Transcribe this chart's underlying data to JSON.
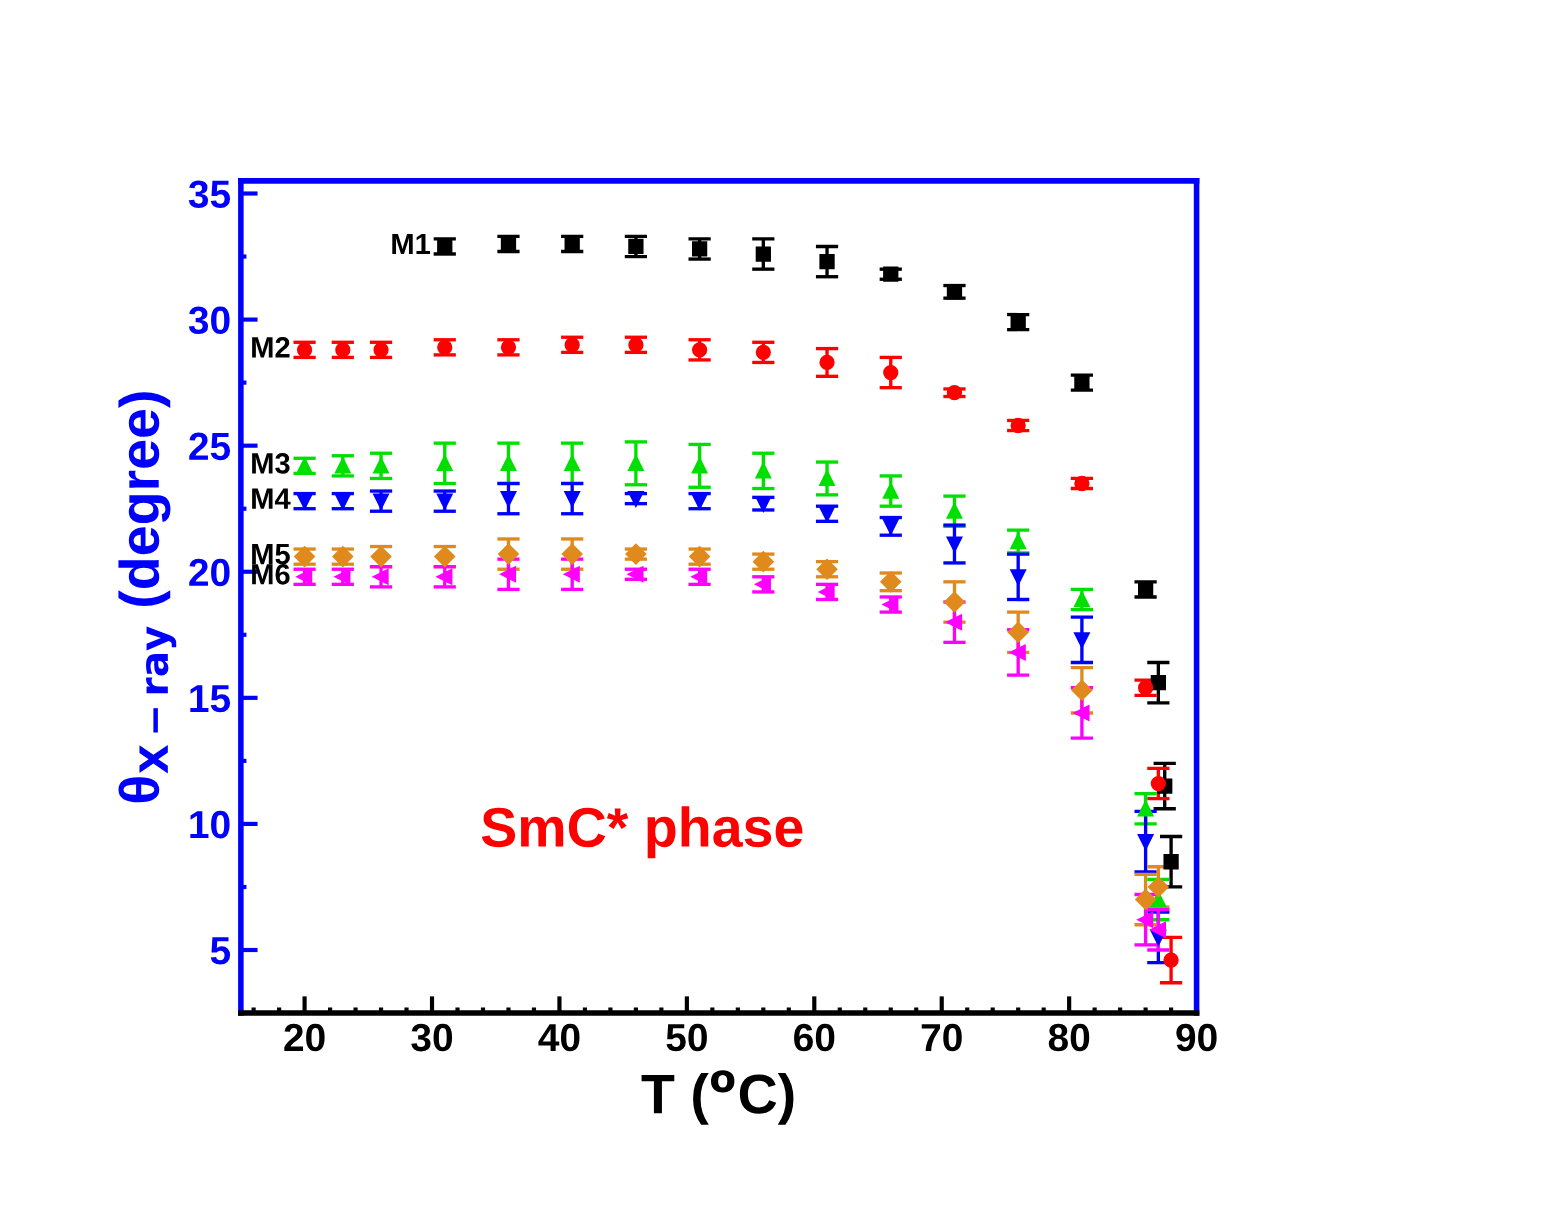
{
  "chart_data": {
    "type": "scatter",
    "xlabel": "T ($^{o}$C)",
    "ylabel": "θ$_{X−ray}$ (degree)",
    "xlim": [
      15,
      90
    ],
    "ylim": [
      2.5,
      35.5
    ],
    "xticks": [
      20,
      30,
      40,
      50,
      60,
      70,
      80,
      90
    ],
    "yticks": [
      5,
      10,
      15,
      20,
      25,
      30,
      35
    ],
    "grid": false,
    "legend": false,
    "annotations": [
      "SmC* phase"
    ],
    "series": [
      {
        "name": "M1",
        "color": "#000000",
        "marker": "square",
        "x": [
          31,
          36,
          41,
          46,
          51,
          56,
          61,
          66,
          71,
          76,
          81,
          86,
          87,
          87.5,
          88
        ],
        "values": [
          32.9,
          33.0,
          33.0,
          32.9,
          32.8,
          32.6,
          32.3,
          31.8,
          31.1,
          29.9,
          27.5,
          19.3,
          15.6,
          11.5,
          8.5
        ],
        "errors": [
          0.3,
          0.3,
          0.3,
          0.4,
          0.4,
          0.6,
          0.6,
          0.2,
          0.25,
          0.3,
          0.3,
          0.3,
          0.8,
          0.9,
          1.0
        ]
      },
      {
        "name": "M2",
        "color": "#ff0000",
        "marker": "circle",
        "x": [
          20,
          23,
          26,
          31,
          36,
          41,
          46,
          51,
          56,
          61,
          66,
          71,
          76,
          81,
          86,
          87,
          88
        ],
        "values": [
          28.8,
          28.8,
          28.8,
          28.9,
          28.9,
          29.0,
          29.0,
          28.8,
          28.7,
          28.3,
          27.9,
          27.1,
          25.8,
          23.5,
          15.4,
          11.6,
          4.6
        ],
        "errors": [
          0.3,
          0.3,
          0.3,
          0.3,
          0.3,
          0.3,
          0.3,
          0.4,
          0.4,
          0.55,
          0.6,
          0.15,
          0.2,
          0.2,
          0.3,
          0.6,
          0.9
        ]
      },
      {
        "name": "M3",
        "color": "#00e000",
        "marker": "triangle",
        "x": [
          20,
          23,
          26,
          31,
          36,
          41,
          46,
          51,
          56,
          61,
          66,
          71,
          76,
          81,
          86,
          87
        ],
        "values": [
          24.2,
          24.2,
          24.2,
          24.3,
          24.3,
          24.3,
          24.3,
          24.2,
          24.0,
          23.7,
          23.2,
          22.4,
          21.2,
          18.9,
          10.6,
          7.0
        ],
        "errors": [
          0.3,
          0.4,
          0.5,
          0.8,
          0.8,
          0.8,
          0.85,
          0.85,
          0.7,
          0.65,
          0.6,
          0.6,
          0.45,
          0.4,
          0.6,
          0.8
        ]
      },
      {
        "name": "M4",
        "color": "#0000ff",
        "marker": "triangle-down",
        "x": [
          20,
          23,
          26,
          31,
          36,
          41,
          46,
          51,
          56,
          61,
          66,
          71,
          76,
          81,
          86,
          87
        ],
        "values": [
          22.8,
          22.8,
          22.8,
          22.8,
          22.9,
          22.9,
          22.9,
          22.8,
          22.7,
          22.3,
          21.8,
          21.1,
          19.8,
          17.3,
          9.3,
          5.5
        ],
        "errors": [
          0.3,
          0.3,
          0.4,
          0.4,
          0.6,
          0.6,
          0.2,
          0.3,
          0.25,
          0.3,
          0.35,
          0.75,
          0.9,
          0.9,
          1.2,
          1.0
        ]
      },
      {
        "name": "M5",
        "color": "#e08a1e",
        "marker": "diamond",
        "x": [
          20,
          23,
          26,
          31,
          36,
          41,
          46,
          51,
          56,
          61,
          66,
          71,
          76,
          81,
          86,
          87
        ],
        "values": [
          20.6,
          20.6,
          20.6,
          20.6,
          20.7,
          20.7,
          20.7,
          20.6,
          20.4,
          20.1,
          19.6,
          18.8,
          17.6,
          15.3,
          7.0,
          7.5
        ],
        "errors": [
          0.3,
          0.3,
          0.4,
          0.4,
          0.6,
          0.6,
          0.2,
          0.3,
          0.3,
          0.3,
          0.35,
          0.8,
          0.8,
          0.9,
          1.0,
          0.8
        ]
      },
      {
        "name": "M6",
        "color": "#ff00ff",
        "marker": "triangle-left",
        "x": [
          20,
          23,
          26,
          31,
          36,
          41,
          46,
          51,
          56,
          61,
          66,
          71,
          76,
          81,
          86,
          87
        ],
        "values": [
          19.8,
          19.8,
          19.8,
          19.8,
          19.9,
          19.9,
          19.9,
          19.8,
          19.5,
          19.2,
          18.7,
          18.0,
          16.8,
          14.4,
          6.2,
          5.8
        ],
        "errors": [
          0.3,
          0.3,
          0.4,
          0.4,
          0.6,
          0.6,
          0.2,
          0.3,
          0.3,
          0.3,
          0.3,
          0.8,
          0.9,
          1.0,
          1.0,
          0.8
        ]
      }
    ]
  }
}
